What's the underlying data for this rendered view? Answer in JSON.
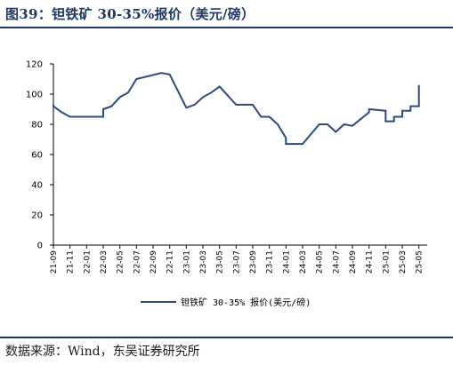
{
  "title": "图39：钽铁矿 30-35%报价（美元/磅）",
  "source": "数据来源：Wind，东吴证券研究所",
  "colors": {
    "accent": "#1f3864",
    "line": "#2e4a7a"
  },
  "chart_data": {
    "type": "line",
    "title": "",
    "xlabel": "",
    "ylabel": "",
    "ylim": [
      0,
      120
    ],
    "yticks": [
      0,
      20,
      40,
      60,
      80,
      100,
      120
    ],
    "xticks": [
      "21-09",
      "21-11",
      "22-01",
      "22-03",
      "22-05",
      "22-07",
      "22-09",
      "22-11",
      "23-01",
      "23-03",
      "23-05",
      "23-07",
      "23-09",
      "23-11",
      "24-01",
      "24-03",
      "24-05",
      "24-07",
      "24-09",
      "24-11",
      "25-01",
      "25-03",
      "25-05"
    ],
    "grid": false,
    "legend_position": "bottom-center",
    "series": [
      {
        "name": "钽铁矿 30-35% 报价(美元/磅)",
        "x": [
          "21-09",
          "21-09",
          "21-10",
          "21-10",
          "21-11",
          "22-01",
          "22-03",
          "22-03",
          "22-04",
          "22-04",
          "22-05",
          "22-05",
          "22-06",
          "22-06",
          "22-07",
          "22-07",
          "22-10",
          "22-10",
          "22-11",
          "22-11",
          "23-01",
          "23-01",
          "23-02",
          "23-02",
          "23-03",
          "23-03",
          "23-04",
          "23-04",
          "23-05",
          "23-05",
          "23-07",
          "23-09",
          "23-10",
          "23-10",
          "23-11",
          "23-11",
          "23-12",
          "23-12",
          "24-01",
          "24-01",
          "24-03",
          "24-05",
          "24-06",
          "24-06",
          "24-07",
          "24-07",
          "24-08",
          "24-08",
          "24-09",
          "24-11",
          "24-11",
          "25-01",
          "25-01",
          "25-02",
          "25-02",
          "25-03",
          "25-03",
          "25-04",
          "25-04",
          "25-05",
          "25-05",
          "25-05"
        ],
        "values": [
          93,
          92,
          88,
          88,
          85,
          85,
          85,
          90,
          92,
          92,
          98,
          98,
          101,
          101,
          110,
          110,
          114,
          114,
          113,
          113,
          91,
          91,
          93,
          93,
          98,
          98,
          101,
          101,
          105,
          105,
          93,
          93,
          85,
          85,
          85,
          85,
          80,
          80,
          71,
          67,
          67,
          80,
          80,
          80,
          75,
          75,
          80,
          80,
          79,
          88,
          90,
          89,
          82,
          82,
          85,
          85,
          89,
          89,
          92,
          92,
          102,
          106
        ]
      }
    ]
  }
}
